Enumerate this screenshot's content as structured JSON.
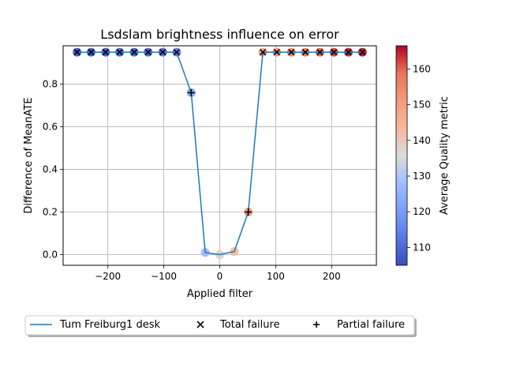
{
  "chart_data": {
    "type": "line",
    "title": "Lsdslam brightness influence on error",
    "xlabel": "Applied filter",
    "ylabel": "Difference of MeanATE",
    "xlim": [
      -280,
      280
    ],
    "ylim": [
      -0.05,
      0.98
    ],
    "xticks": [
      -200,
      -100,
      0,
      100,
      200
    ],
    "xtick_labels": [
      "−200",
      "−100",
      "0",
      "100",
      "200"
    ],
    "yticks": [
      0.0,
      0.2,
      0.4,
      0.6,
      0.8
    ],
    "ytick_labels": [
      "0.0",
      "0.2",
      "0.4",
      "0.6",
      "0.8"
    ],
    "grid": true,
    "legend_position": "below-center",
    "series": [
      {
        "name": "Tum Freiburg1 desk",
        "color": "#1f77b4",
        "x": [
          -255,
          -230,
          -204,
          -179,
          -153,
          -128,
          -102,
          -77,
          -51,
          -26,
          0,
          26,
          51,
          77,
          102,
          128,
          153,
          179,
          204,
          230,
          255
        ],
        "y": [
          0.95,
          0.95,
          0.95,
          0.95,
          0.95,
          0.95,
          0.95,
          0.95,
          0.76,
          0.01,
          0.0,
          0.015,
          0.2,
          0.95,
          0.95,
          0.95,
          0.95,
          0.95,
          0.95,
          0.95,
          0.95
        ],
        "quality": [
          108,
          108,
          108,
          110,
          110,
          110,
          112,
          115,
          122,
          128,
          138,
          142,
          150,
          148,
          152,
          155,
          157,
          160,
          162,
          164,
          165
        ],
        "marker": [
          "x",
          "x",
          "x",
          "x",
          "x",
          "x",
          "x",
          "x",
          "+",
          "none",
          "none",
          "none",
          "+",
          "x",
          "x",
          "x",
          "x",
          "x",
          "x",
          "x",
          "x"
        ]
      }
    ],
    "colorbar": {
      "label": "Average Quality metric",
      "min": 105,
      "max": 166.5,
      "ticks": [
        110,
        120,
        130,
        140,
        150,
        160
      ],
      "tick_labels": [
        "110",
        "120",
        "130",
        "140",
        "150",
        "160"
      ],
      "colormap": "coolwarm"
    },
    "legend": [
      {
        "label": "Tum Freiburg1 desk",
        "kind": "line"
      },
      {
        "label": "Total failure",
        "kind": "x-marker"
      },
      {
        "label": "Partial failure",
        "kind": "plus-marker"
      }
    ]
  }
}
